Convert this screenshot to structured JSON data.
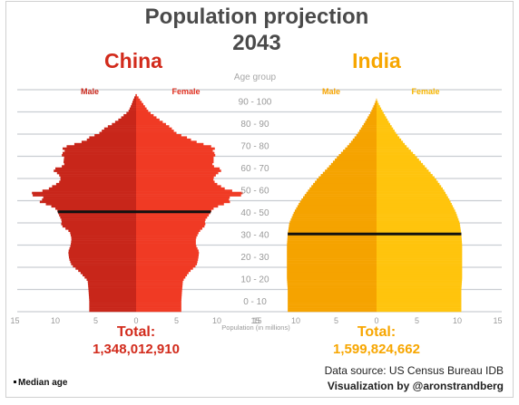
{
  "title": "Population projection",
  "year": "2043",
  "age_group_label": "Age group",
  "axis_label": "Population (in millions)",
  "median_age_legend": "Median age",
  "data_source": "Data source: US Census Bureau IDB",
  "credit": "Visualization by @aronstrandberg",
  "colors": {
    "china_male": "#c8261a",
    "china_female": "#f03a24",
    "china_text": "#d22b1c",
    "india_male": "#f5a300",
    "india_female": "#ffc40d",
    "india_text": "#f7a600",
    "title": "#4a4a4a",
    "median_line": "#111111",
    "grid": "#c9cdd2"
  },
  "chart_data": [
    {
      "type": "population-pyramid",
      "title": "China",
      "series": [
        {
          "name": "Male",
          "side": "left"
        },
        {
          "name": "Female",
          "side": "right"
        }
      ],
      "total_label": "Total:",
      "total_value": "1,348,012,910",
      "x_ticks": [
        "15",
        "10",
        "5",
        "0",
        "5",
        "10",
        "15"
      ],
      "y_categories": [
        "0 - 10",
        "10 - 20",
        "20 - 30",
        "30 - 40",
        "40 - 50",
        "50 - 60",
        "60 - 70",
        "70 - 80",
        "80 - 90",
        "90 - 100"
      ],
      "xlim_millions": [
        -15,
        15
      ],
      "ylim_age": [
        -5,
        104
      ],
      "median_age": 45,
      "male_profile": [
        [
          0,
          5.8
        ],
        [
          5,
          5.8
        ],
        [
          10,
          5.9
        ],
        [
          14,
          6.0
        ],
        [
          18,
          7.0
        ],
        [
          21,
          8.0
        ],
        [
          24,
          8.3
        ],
        [
          27,
          8.4
        ],
        [
          30,
          8.1
        ],
        [
          33,
          8.0
        ],
        [
          36,
          8.2
        ],
        [
          39,
          9.3
        ],
        [
          41,
          9.2
        ],
        [
          44,
          9.6
        ],
        [
          46,
          9.8
        ],
        [
          47,
          10.2
        ],
        [
          48,
          10.8
        ],
        [
          50,
          12.3
        ],
        [
          51,
          11.0
        ],
        [
          52,
          12.0
        ],
        [
          53,
          13.6
        ],
        [
          54,
          12.2
        ],
        [
          55,
          11.0
        ],
        [
          57,
          10.2
        ],
        [
          58,
          9.6
        ],
        [
          60,
          9.3
        ],
        [
          62,
          9.6
        ],
        [
          64,
          10.4
        ],
        [
          66,
          8.8
        ],
        [
          67,
          9.0
        ],
        [
          70,
          8.9
        ],
        [
          71,
          9.5
        ],
        [
          72,
          8.7
        ],
        [
          73,
          9.0
        ],
        [
          74,
          9.2
        ],
        [
          75,
          8.0
        ],
        [
          76,
          7.3
        ],
        [
          77,
          6.2
        ],
        [
          78,
          6.0
        ],
        [
          79,
          5.6
        ],
        [
          80,
          4.7
        ],
        [
          81,
          4.4
        ],
        [
          83,
          3.8
        ],
        [
          84,
          3.2
        ],
        [
          87,
          2.0
        ],
        [
          89,
          1.4
        ],
        [
          90,
          1.0
        ],
        [
          93,
          0.6
        ],
        [
          96,
          0.3
        ],
        [
          98,
          0.0
        ]
      ],
      "female_profile": [
        [
          0,
          5.6
        ],
        [
          5,
          5.6
        ],
        [
          10,
          5.7
        ],
        [
          14,
          5.8
        ],
        [
          18,
          6.6
        ],
        [
          21,
          7.5
        ],
        [
          24,
          7.7
        ],
        [
          27,
          7.8
        ],
        [
          30,
          7.4
        ],
        [
          33,
          7.4
        ],
        [
          36,
          7.8
        ],
        [
          39,
          8.6
        ],
        [
          41,
          8.5
        ],
        [
          44,
          9.1
        ],
        [
          46,
          9.4
        ],
        [
          47,
          9.8
        ],
        [
          48,
          10.5
        ],
        [
          50,
          12.0
        ],
        [
          51,
          11.0
        ],
        [
          52,
          12.2
        ],
        [
          53,
          13.8
        ],
        [
          54,
          12.6
        ],
        [
          55,
          11.2
        ],
        [
          57,
          10.3
        ],
        [
          58,
          9.8
        ],
        [
          60,
          9.5
        ],
        [
          62,
          10.0
        ],
        [
          64,
          10.7
        ],
        [
          66,
          9.3
        ],
        [
          67,
          9.6
        ],
        [
          70,
          9.6
        ],
        [
          71,
          10.0
        ],
        [
          72,
          9.4
        ],
        [
          73,
          9.6
        ],
        [
          74,
          9.9
        ],
        [
          75,
          8.7
        ],
        [
          76,
          8.0
        ],
        [
          77,
          7.0
        ],
        [
          78,
          6.6
        ],
        [
          79,
          6.0
        ],
        [
          80,
          5.2
        ],
        [
          81,
          4.8
        ],
        [
          83,
          4.3
        ],
        [
          84,
          3.9
        ],
        [
          87,
          2.7
        ],
        [
          89,
          2.0
        ],
        [
          90,
          1.6
        ],
        [
          93,
          1.0
        ],
        [
          96,
          0.4
        ],
        [
          98,
          0.0
        ]
      ]
    },
    {
      "type": "population-pyramid",
      "title": "India",
      "series": [
        {
          "name": "Male",
          "side": "left"
        },
        {
          "name": "Female",
          "side": "right"
        }
      ],
      "total_label": "Total:",
      "total_value": "1,599,824,662",
      "x_ticks": [
        "15",
        "10",
        "5",
        "0",
        "5",
        "10",
        "15"
      ],
      "y_categories": [
        "0 - 10",
        "10 - 20",
        "20 - 30",
        "30 - 40",
        "40 - 50",
        "50 - 60",
        "60 - 70",
        "70 - 80",
        "80 - 90",
        "90 - 100"
      ],
      "xlim_millions": [
        -15,
        15
      ],
      "ylim_age": [
        -5,
        104
      ],
      "median_age": 35,
      "male_profile": [
        [
          0,
          11.0
        ],
        [
          5,
          11.0
        ],
        [
          10,
          11.0
        ],
        [
          15,
          11.1
        ],
        [
          20,
          11.1
        ],
        [
          25,
          11.1
        ],
        [
          30,
          11.1
        ],
        [
          35,
          11.0
        ],
        [
          40,
          10.8
        ],
        [
          45,
          10.2
        ],
        [
          50,
          9.4
        ],
        [
          55,
          8.4
        ],
        [
          60,
          7.3
        ],
        [
          65,
          6.0
        ],
        [
          70,
          4.8
        ],
        [
          75,
          3.5
        ],
        [
          80,
          2.4
        ],
        [
          85,
          1.5
        ],
        [
          90,
          0.7
        ],
        [
          94,
          0.2
        ],
        [
          96,
          0.0
        ]
      ],
      "female_profile": [
        [
          0,
          10.5
        ],
        [
          5,
          10.5
        ],
        [
          10,
          10.5
        ],
        [
          15,
          10.6
        ],
        [
          20,
          10.6
        ],
        [
          25,
          10.6
        ],
        [
          30,
          10.6
        ],
        [
          35,
          10.5
        ],
        [
          40,
          10.3
        ],
        [
          45,
          9.8
        ],
        [
          50,
          9.1
        ],
        [
          55,
          8.3
        ],
        [
          60,
          7.3
        ],
        [
          65,
          6.1
        ],
        [
          70,
          4.9
        ],
        [
          75,
          3.6
        ],
        [
          80,
          2.5
        ],
        [
          85,
          1.6
        ],
        [
          90,
          0.8
        ],
        [
          94,
          0.2
        ],
        [
          96,
          0.0
        ]
      ]
    }
  ]
}
